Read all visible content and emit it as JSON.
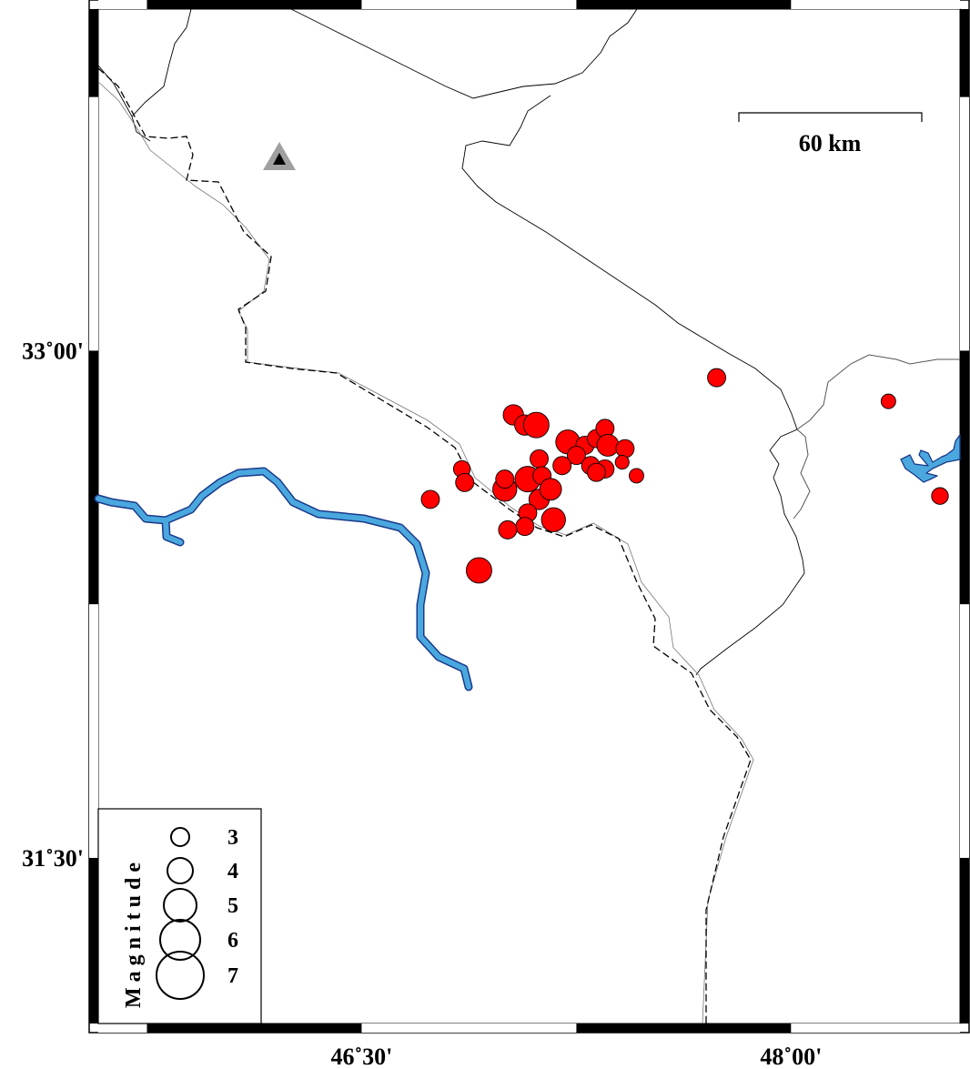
{
  "map": {
    "extent": {
      "lon": [
        45.58,
        48.59
      ],
      "lat": [
        31.01,
        34.01
      ]
    },
    "x_ticks": [
      {
        "value": 46.5,
        "label": "46˚30'"
      },
      {
        "value": 48.0,
        "label": "48˚00'"
      }
    ],
    "y_ticks": [
      {
        "value": 33.0,
        "label": "33˚00'"
      },
      {
        "value": 31.5,
        "label": "31˚30'"
      }
    ],
    "scale_bar": {
      "label": "60 km"
    },
    "colors": {
      "event": "#ff0000",
      "river": "#4aa8de",
      "river_outline": "#1a3a8a",
      "station": "#a0a0a0"
    },
    "station": {
      "lon": 46.24,
      "lat": 33.57,
      "icon": "triangle-icon"
    },
    "legend": {
      "title": "Magnitude",
      "items": [
        {
          "mag": 3,
          "label": "3"
        },
        {
          "mag": 4,
          "label": "4"
        },
        {
          "mag": 5,
          "label": "5"
        },
        {
          "mag": 6,
          "label": "6"
        },
        {
          "mag": 7,
          "label": "7"
        }
      ]
    },
    "events": [
      {
        "lon": 47.03,
        "lat": 32.81,
        "mag": 3.3
      },
      {
        "lon": 47.07,
        "lat": 32.78,
        "mag": 3.3
      },
      {
        "lon": 47.11,
        "lat": 32.78,
        "mag": 4.0
      },
      {
        "lon": 47.22,
        "lat": 32.73,
        "mag": 3.8
      },
      {
        "lon": 47.28,
        "lat": 32.72,
        "mag": 3.0
      },
      {
        "lon": 47.32,
        "lat": 32.74,
        "mag": 3.0
      },
      {
        "lon": 47.35,
        "lat": 32.77,
        "mag": 3.0
      },
      {
        "lon": 47.36,
        "lat": 32.72,
        "mag": 3.5
      },
      {
        "lon": 47.42,
        "lat": 32.71,
        "mag": 3.0
      },
      {
        "lon": 47.41,
        "lat": 32.67,
        "mag": 2.4
      },
      {
        "lon": 47.25,
        "lat": 32.69,
        "mag": 3.0
      },
      {
        "lon": 47.12,
        "lat": 32.68,
        "mag": 3.0
      },
      {
        "lon": 47.2,
        "lat": 32.66,
        "mag": 3.0
      },
      {
        "lon": 47.3,
        "lat": 32.66,
        "mag": 3.0
      },
      {
        "lon": 47.35,
        "lat": 32.65,
        "mag": 3.0
      },
      {
        "lon": 47.32,
        "lat": 32.64,
        "mag": 3.0
      },
      {
        "lon": 46.85,
        "lat": 32.65,
        "mag": 2.8
      },
      {
        "lon": 46.86,
        "lat": 32.61,
        "mag": 3.0
      },
      {
        "lon": 47.0,
        "lat": 32.59,
        "mag": 3.8
      },
      {
        "lon": 47.0,
        "lat": 32.62,
        "mag": 3.0
      },
      {
        "lon": 47.08,
        "lat": 32.62,
        "mag": 4.0
      },
      {
        "lon": 47.13,
        "lat": 32.63,
        "mag": 3.0
      },
      {
        "lon": 47.12,
        "lat": 32.56,
        "mag": 3.3
      },
      {
        "lon": 47.16,
        "lat": 32.59,
        "mag": 3.5
      },
      {
        "lon": 46.74,
        "lat": 32.56,
        "mag": 3.0
      },
      {
        "lon": 47.08,
        "lat": 32.52,
        "mag": 3.0
      },
      {
        "lon": 47.07,
        "lat": 32.48,
        "mag": 3.0
      },
      {
        "lon": 47.01,
        "lat": 32.47,
        "mag": 3.0
      },
      {
        "lon": 47.17,
        "lat": 32.5,
        "mag": 3.8
      },
      {
        "lon": 46.91,
        "lat": 32.35,
        "mag": 4.0
      },
      {
        "lon": 47.46,
        "lat": 32.63,
        "mag": 2.5
      },
      {
        "lon": 47.74,
        "lat": 32.92,
        "mag": 3.0
      },
      {
        "lon": 48.34,
        "lat": 32.85,
        "mag": 2.5
      },
      {
        "lon": 48.52,
        "lat": 32.57,
        "mag": 2.8
      }
    ]
  }
}
